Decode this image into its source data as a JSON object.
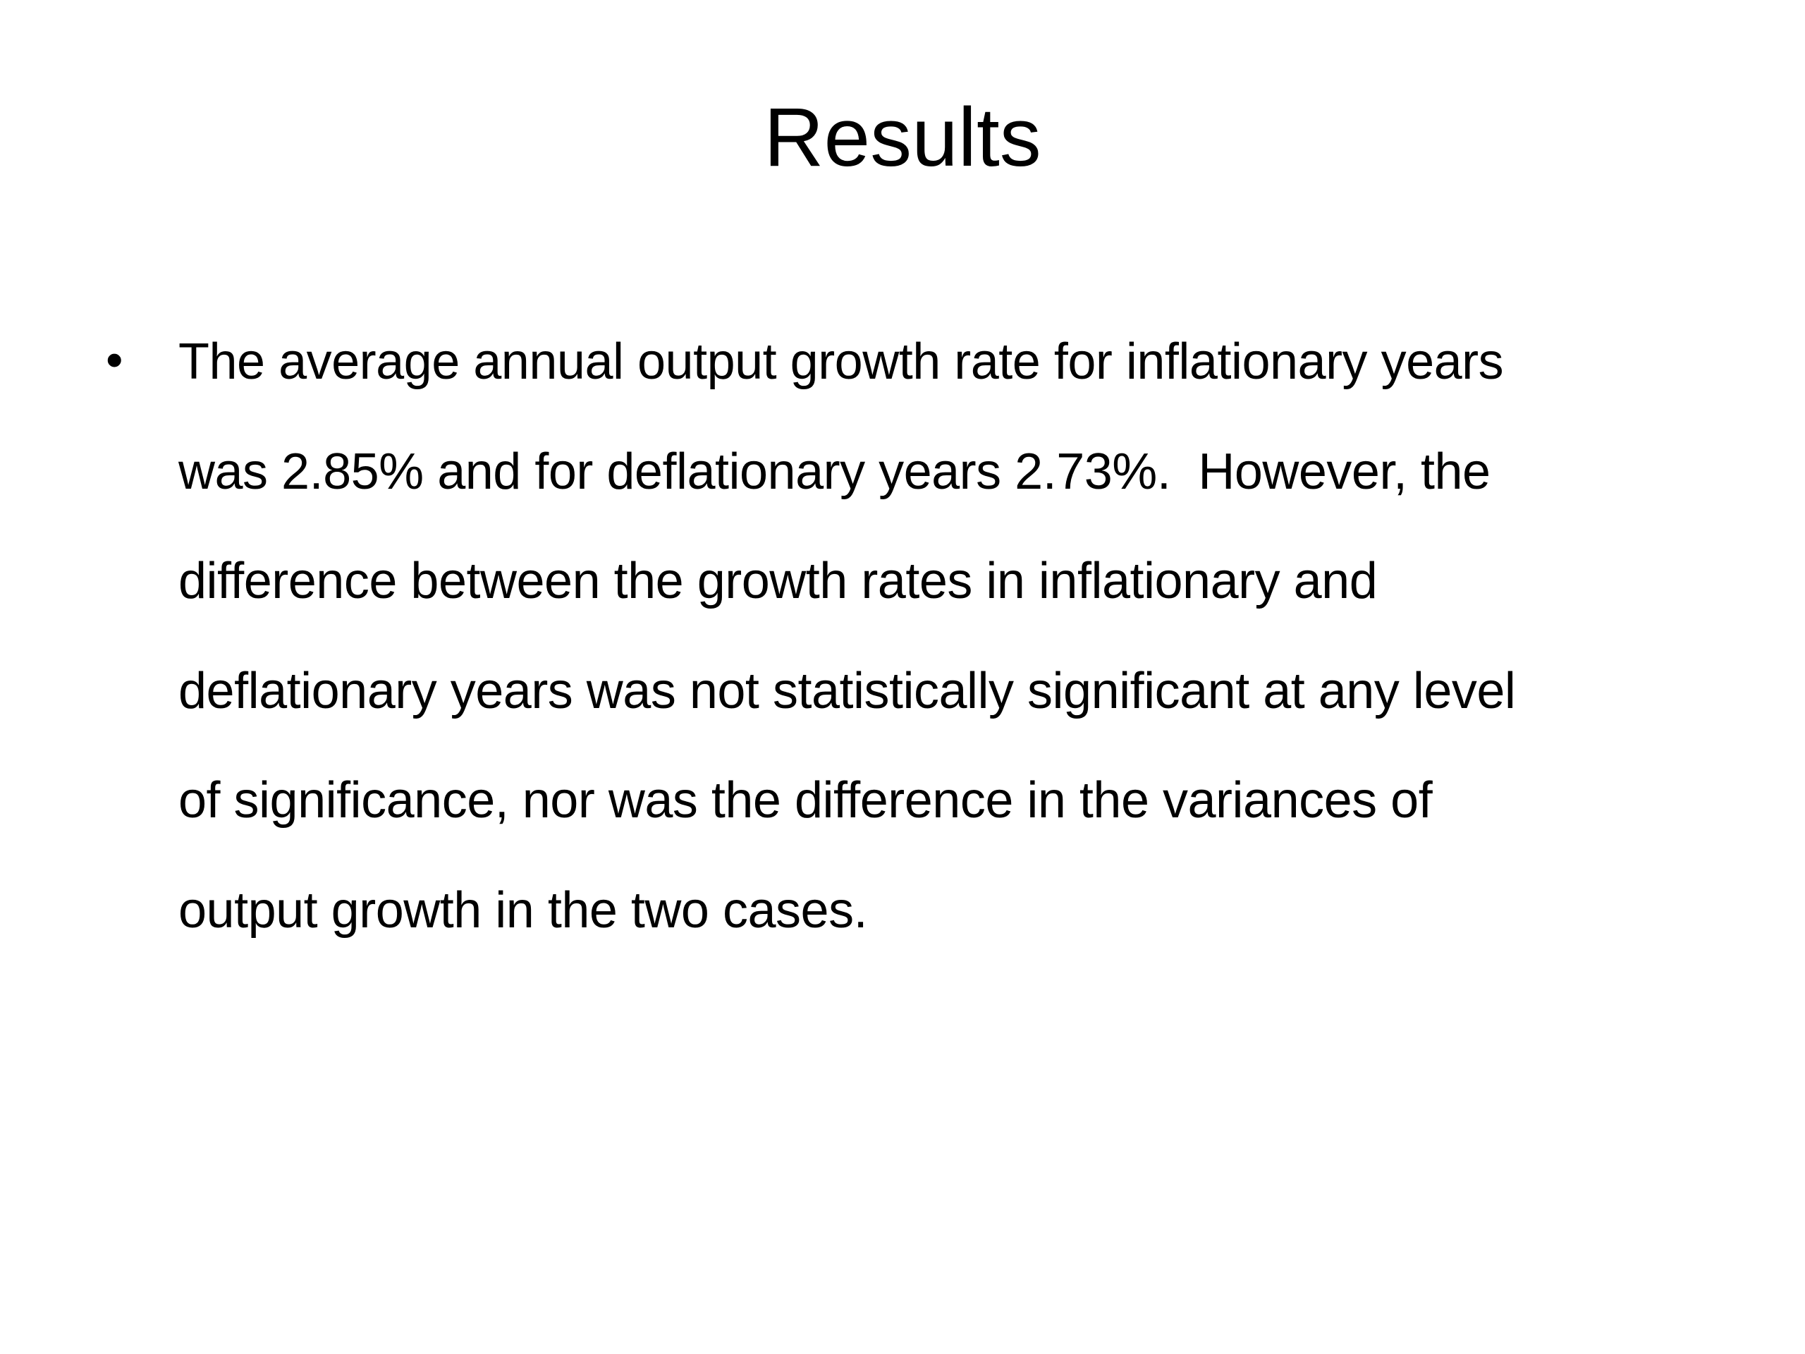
{
  "title": "Results",
  "bullet": {
    "lines": [
      "The average annual output growth rate for inflationary years",
      "was 2.85% and for deflationary years 2.73%.  However, the",
      "difference between the growth rates in inflationary and",
      "deflationary years was not statistically significant at any level",
      "of significance, nor was the difference in the variances of",
      "output growth in the two cases."
    ]
  }
}
